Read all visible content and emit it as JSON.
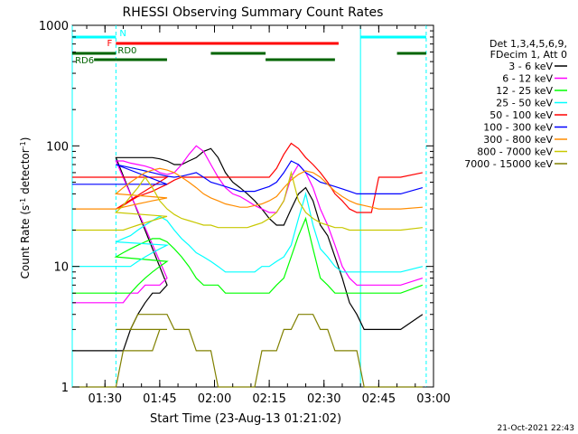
{
  "chart_data": {
    "type": "line",
    "title": "RHESSI Observing Summary Count Rates",
    "ylabel_main": "Count Rate (s",
    "ylabel_sup1": "-1",
    "ylabel_mid": " detector",
    "ylabel_sup2": "-1",
    "ylabel_end": ")",
    "xlabel": "Start Time (23-Aug-13 01:21:02)",
    "y_scale": "log",
    "ylim": [
      1,
      1000
    ],
    "y_ticks": [
      1,
      10,
      100,
      1000
    ],
    "y_tick_labels": [
      "1",
      "10",
      "100",
      "1000"
    ],
    "xlim": [
      "01:21:02",
      "03:00:00"
    ],
    "x_ticks": [
      "01:30",
      "01:45",
      "02:00",
      "02:15",
      "02:30",
      "02:45",
      "03:00"
    ],
    "x_tick_labels": [
      "01:30",
      "01:45",
      "02:00",
      "02:15",
      "02:30",
      "02:45",
      "03:00"
    ],
    "legend_header": [
      "Det 1,3,4,5,6,9,",
      "FDecim 1, Att 0"
    ],
    "legend_position": "right",
    "grid": false,
    "series": [
      {
        "name": "3 - 6 keV",
        "color": "#000000",
        "values": [
          2,
          2,
          2,
          2,
          2,
          2,
          2,
          2,
          3,
          4,
          5,
          6,
          6,
          7,
          80,
          80,
          80,
          80,
          80,
          80,
          78,
          75,
          70,
          70,
          75,
          80,
          90,
          95,
          80,
          60,
          50,
          45,
          40,
          35,
          30,
          25,
          22,
          22,
          30,
          40,
          45,
          35,
          22,
          18,
          12,
          8,
          5,
          4,
          3,
          3,
          3,
          3,
          3,
          3,
          4
        ]
      },
      {
        "name": "6 - 12 keV",
        "color": "#ff00ff",
        "values": [
          5,
          5,
          5,
          5,
          5,
          5,
          5,
          5,
          6,
          6,
          7,
          7,
          7,
          8,
          75,
          75,
          72,
          70,
          68,
          65,
          60,
          58,
          60,
          70,
          85,
          100,
          90,
          70,
          55,
          45,
          40,
          38,
          35,
          32,
          30,
          28,
          28,
          35,
          55,
          70,
          60,
          45,
          30,
          22,
          15,
          10,
          8,
          7,
          7,
          7,
          7,
          7,
          7,
          7,
          8
        ]
      },
      {
        "name": "12 - 25 keV",
        "color": "#00ff00",
        "values": [
          6,
          6,
          6,
          6,
          6,
          6,
          6,
          6,
          6,
          7,
          8,
          9,
          10,
          11,
          12,
          13,
          14,
          15,
          16,
          17,
          17,
          16,
          14,
          12,
          10,
          8,
          7,
          7,
          7,
          6,
          6,
          6,
          6,
          6,
          6,
          6,
          7,
          8,
          12,
          18,
          25,
          14,
          8,
          7,
          6,
          6,
          6,
          6,
          6,
          6,
          6,
          6,
          6,
          6,
          7
        ]
      },
      {
        "name": "25 - 50 keV",
        "color": "#00ffff",
        "values": [
          10,
          10,
          10,
          10,
          10,
          10,
          10,
          10,
          10,
          11,
          12,
          13,
          14,
          15,
          16,
          17,
          18,
          20,
          22,
          24,
          26,
          24,
          20,
          17,
          15,
          13,
          12,
          11,
          10,
          9,
          9,
          9,
          9,
          9,
          10,
          10,
          11,
          12,
          15,
          25,
          40,
          22,
          14,
          12,
          10,
          9,
          9,
          9,
          9,
          9,
          9,
          9,
          9,
          9,
          10
        ]
      },
      {
        "name": "50 - 100 keV",
        "color": "#ff0000",
        "values": [
          55,
          55,
          55,
          55,
          55,
          55,
          55,
          55,
          55,
          55,
          55,
          55,
          55,
          55,
          30,
          32,
          35,
          38,
          40,
          42,
          45,
          48,
          52,
          55,
          55,
          55,
          55,
          55,
          55,
          55,
          55,
          55,
          55,
          55,
          55,
          55,
          65,
          85,
          105,
          95,
          80,
          70,
          60,
          50,
          40,
          35,
          30,
          28,
          28,
          28,
          55,
          55,
          55,
          55,
          60
        ]
      },
      {
        "name": "100 - 300 keV",
        "color": "#0000ff",
        "values": [
          48,
          48,
          48,
          48,
          48,
          48,
          48,
          48,
          48,
          48,
          48,
          48,
          48,
          48,
          70,
          68,
          66,
          64,
          62,
          60,
          58,
          56,
          55,
          56,
          58,
          60,
          55,
          50,
          48,
          46,
          44,
          42,
          42,
          42,
          44,
          46,
          50,
          60,
          75,
          70,
          60,
          55,
          50,
          48,
          46,
          44,
          42,
          40,
          40,
          40,
          40,
          40,
          40,
          40,
          45
        ]
      },
      {
        "name": "300 - 800 keV",
        "color": "#ff8c00",
        "values": [
          30,
          30,
          30,
          30,
          30,
          30,
          30,
          31,
          32,
          33,
          34,
          35,
          36,
          37,
          40,
          45,
          50,
          55,
          60,
          63,
          65,
          63,
          60,
          55,
          50,
          45,
          40,
          37,
          35,
          33,
          32,
          31,
          31,
          32,
          33,
          35,
          38,
          45,
          52,
          58,
          62,
          60,
          55,
          48,
          42,
          38,
          35,
          33,
          32,
          31,
          30,
          30,
          30,
          30,
          31
        ]
      },
      {
        "name": "800 - 7000 keV",
        "color": "#c8c800",
        "values": [
          20,
          20,
          20,
          20,
          20,
          20,
          20,
          20,
          21,
          22,
          23,
          24,
          25,
          26,
          28,
          32,
          38,
          45,
          55,
          45,
          35,
          30,
          27,
          25,
          24,
          23,
          22,
          22,
          21,
          21,
          21,
          21,
          21,
          22,
          23,
          25,
          28,
          35,
          60,
          35,
          28,
          25,
          23,
          22,
          21,
          21,
          20,
          20,
          20,
          20,
          20,
          20,
          20,
          20,
          21
        ]
      },
      {
        "name": "7000 - 15000 keV",
        "color": "#808000",
        "values": [
          1,
          1,
          1,
          1,
          1,
          1,
          1,
          2,
          2,
          2,
          2,
          2,
          3,
          3,
          3,
          3,
          3,
          4,
          4,
          4,
          4,
          4,
          3,
          3,
          3,
          2,
          2,
          2,
          1,
          1,
          1,
          1,
          1,
          1,
          2,
          2,
          2,
          3,
          3,
          4,
          4,
          4,
          3,
          3,
          2,
          2,
          2,
          2,
          1,
          1,
          1,
          1,
          1,
          1,
          1
        ]
      }
    ],
    "x_series_times": [
      "01:21:02",
      "01:23",
      "01:25",
      "01:27",
      "01:29",
      "01:31",
      "01:33",
      "01:35",
      "01:37",
      "01:39",
      "01:41",
      "01:43",
      "01:45",
      "01:47",
      "01:33:00",
      "01:35",
      "01:37",
      "01:39",
      "01:41",
      "01:43",
      "01:45",
      "01:47",
      "01:49",
      "01:51",
      "01:53",
      "01:55",
      "01:57",
      "01:59",
      "02:01",
      "02:03",
      "02:05",
      "02:07",
      "02:09",
      "02:11",
      "02:13",
      "02:15",
      "02:17",
      "02:19",
      "02:21",
      "02:23",
      "02:25",
      "02:27",
      "02:29",
      "02:31",
      "02:33",
      "02:35",
      "02:37",
      "02:39",
      "02:41",
      "02:43",
      "02:45",
      "02:47",
      "02:49",
      "02:51",
      "02:57"
    ],
    "annotation_bars": [
      {
        "label": "N",
        "color": "#00ffff",
        "segments": [
          [
            "01:21:02",
            "01:33"
          ],
          [
            "02:40",
            "02:58"
          ]
        ]
      },
      {
        "label": "F",
        "color": "#ff0000",
        "segments": [
          [
            "01:33",
            "02:34"
          ]
        ]
      },
      {
        "label": "RD0",
        "color": "#006400",
        "segments": [
          [
            "01:21:02",
            "01:33"
          ],
          [
            "01:59",
            "02:14"
          ],
          [
            "02:50",
            "02:58"
          ]
        ]
      },
      {
        "label": "RD6",
        "color": "#006400",
        "segments": [
          [
            "01:27",
            "01:33"
          ],
          [
            "01:33",
            "01:47"
          ],
          [
            "02:14",
            "02:33"
          ]
        ]
      }
    ],
    "vertical_lines": [
      {
        "time": "01:21:02",
        "color": "#00ffff",
        "style": "solid"
      },
      {
        "time": "01:33:00",
        "color": "#00ffff",
        "style": "dashed"
      },
      {
        "time": "02:40:00",
        "color": "#00ffff",
        "style": "solid"
      },
      {
        "time": "02:58:00",
        "color": "#00ffff",
        "style": "dashed"
      }
    ],
    "footer_timestamp": "21-Oct-2021 22:43"
  }
}
